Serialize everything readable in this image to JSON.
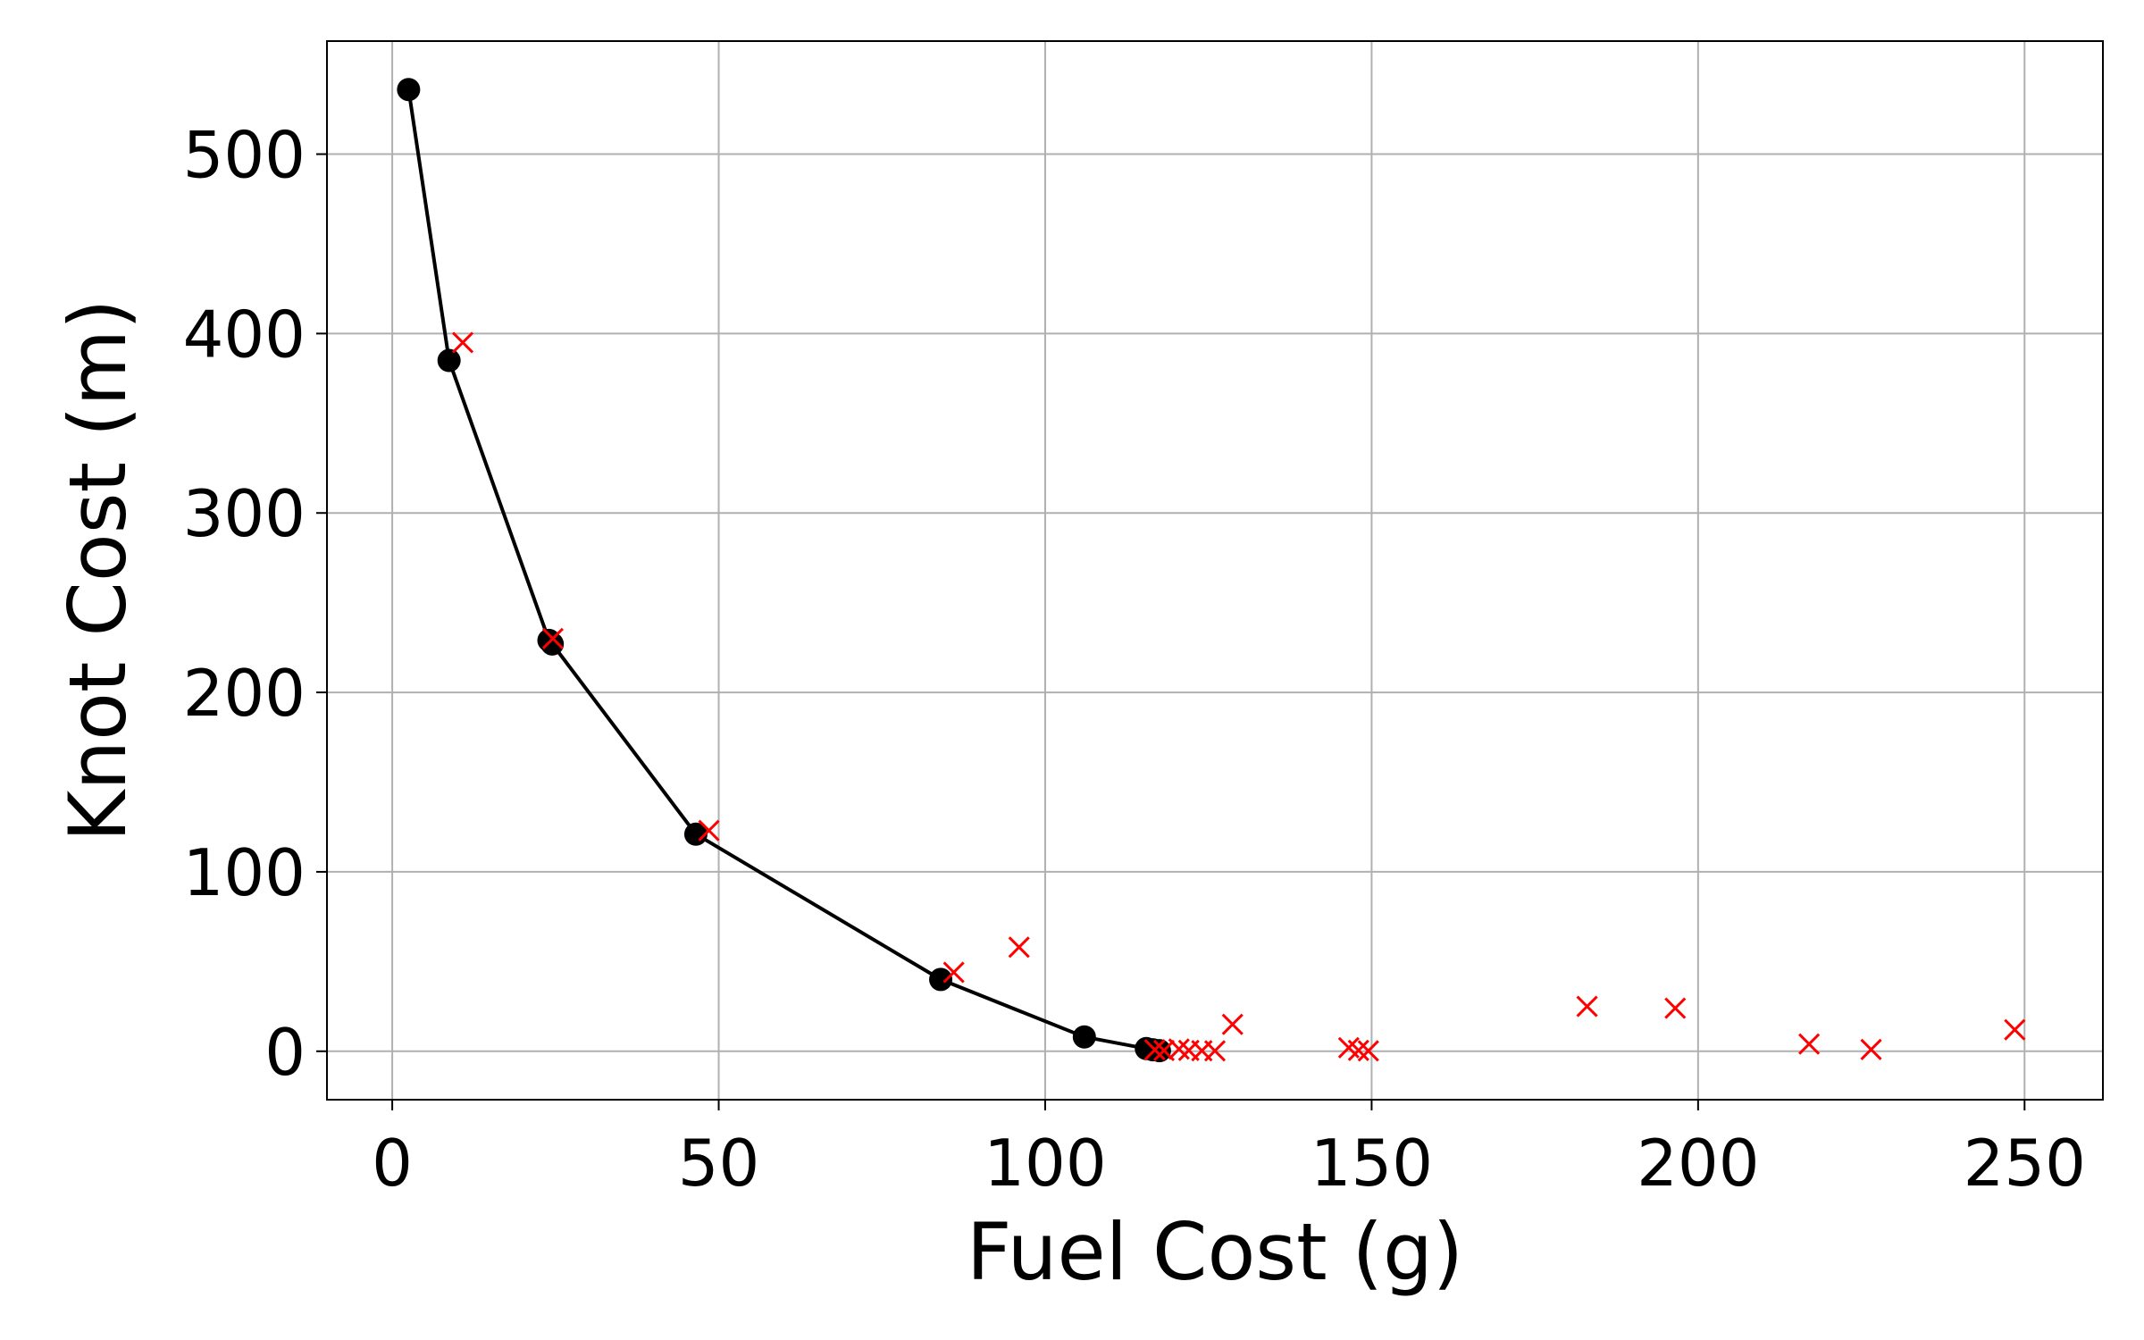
{
  "chart_data": {
    "type": "scatter",
    "title": "",
    "xlabel": "Fuel Cost (g)",
    "ylabel": "Knot Cost (m)",
    "xlim": [
      -10,
      262
    ],
    "ylim": [
      -27,
      563
    ],
    "x_ticks": [
      0,
      50,
      100,
      150,
      200,
      250
    ],
    "y_ticks": [
      0,
      100,
      200,
      300,
      400,
      500
    ],
    "grid": true,
    "legend": "none",
    "series": [
      {
        "marker": "circle",
        "line": true,
        "color": "#000000",
        "points": [
          [
            2.5,
            536
          ],
          [
            8.7,
            385
          ],
          [
            24.0,
            229
          ],
          [
            24.5,
            227
          ],
          [
            46.5,
            121
          ],
          [
            84.0,
            40
          ],
          [
            106.0,
            8
          ],
          [
            115.5,
            1.5
          ],
          [
            116.5,
            0.8
          ],
          [
            117.5,
            0.3
          ]
        ]
      },
      {
        "marker": "x",
        "line": false,
        "color": "#ff0000",
        "points": [
          [
            10.8,
            395
          ],
          [
            24.6,
            230
          ],
          [
            48.5,
            123
          ],
          [
            86.0,
            44
          ],
          [
            96.0,
            58
          ],
          [
            116.8,
            0.8
          ],
          [
            118.2,
            0.4
          ],
          [
            120.5,
            1.2
          ],
          [
            122.0,
            0.5
          ],
          [
            124.0,
            0.3
          ],
          [
            126.0,
            0.2
          ],
          [
            128.7,
            15
          ],
          [
            146.5,
            2
          ],
          [
            148.0,
            0.5
          ],
          [
            149.5,
            0.2
          ],
          [
            183.0,
            25
          ],
          [
            196.5,
            24
          ],
          [
            217.0,
            4
          ],
          [
            226.5,
            1
          ],
          [
            248.5,
            12
          ]
        ]
      }
    ]
  },
  "colors": {
    "grid": "#b0b0b0",
    "axes": "#000000",
    "background": "#ffffff"
  }
}
